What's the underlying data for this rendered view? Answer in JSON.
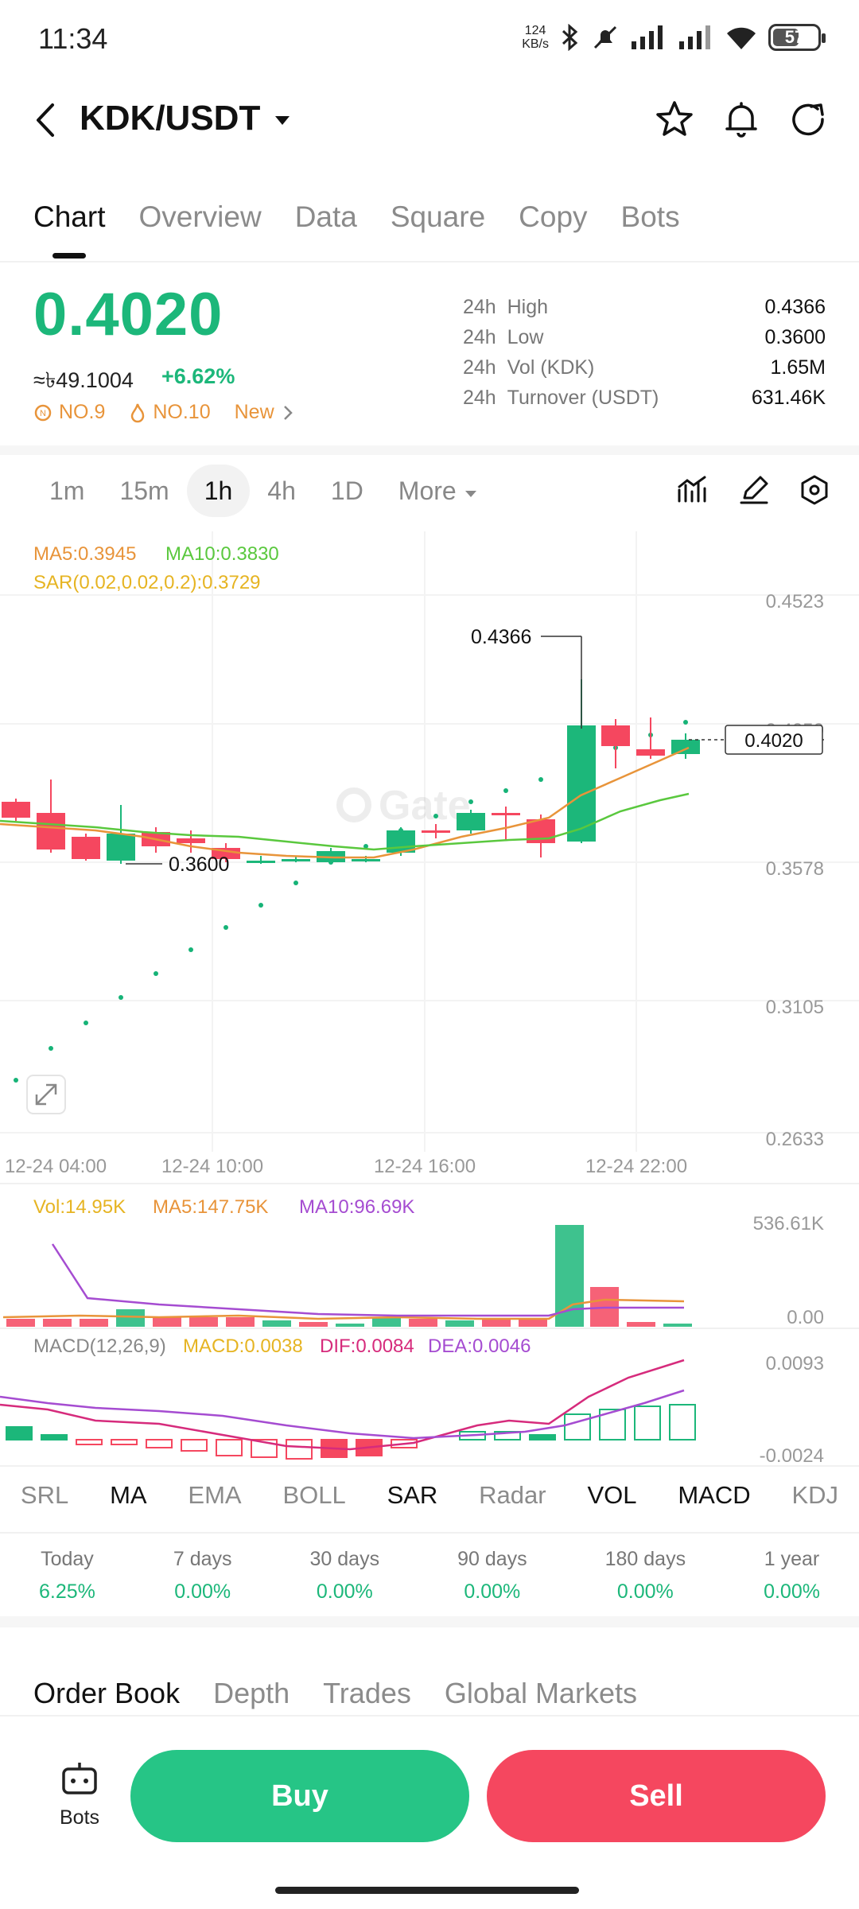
{
  "status": {
    "time": "11:34",
    "speed_value": "124",
    "speed_unit": "KB/s",
    "battery": "57"
  },
  "header": {
    "pair": "KDK/USDT"
  },
  "tabs": [
    {
      "label": "Chart",
      "active": true
    },
    {
      "label": "Overview"
    },
    {
      "label": "Data"
    },
    {
      "label": "Square"
    },
    {
      "label": "Copy"
    },
    {
      "label": "Bots"
    }
  ],
  "price": {
    "last": "0.4020",
    "fiat": "≈৳49.1004",
    "change": "+6.62%",
    "tags": [
      "NO.9",
      "NO.10",
      "New"
    ]
  },
  "stats": [
    {
      "period": "24h",
      "label": "High",
      "value": "0.4366"
    },
    {
      "period": "24h",
      "label": "Low",
      "value": "0.3600"
    },
    {
      "period": "24h",
      "label": "Vol (KDK)",
      "value": "1.65M"
    },
    {
      "period": "24h",
      "label": "Turnover (USDT)",
      "value": "631.46K"
    }
  ],
  "intervals": [
    "1m",
    "15m",
    "1h",
    "4h",
    "1D",
    "More"
  ],
  "active_interval": "1h",
  "colors": {
    "up": "#1cb77a",
    "down": "#f5475f",
    "ma5": "#e8943a",
    "ma10": "#5ac83e",
    "sar": "#16b377",
    "macd_dea": "#a54cd1",
    "macd_dif": "#d62b7c"
  },
  "main_chart": {
    "legend_ma5": "MA5:0.3945",
    "legend_ma10": "MA10:0.3830",
    "legend_sar": "SAR(0.02,0.02,0.2):0.3729",
    "y_ticks": [
      "0.4523",
      "0.4050",
      "0.3578",
      "0.3105",
      "0.2633"
    ],
    "x_ticks": [
      "12-24 04:00",
      "12-24 10:00",
      "12-24 16:00",
      "12-24 22:00"
    ],
    "high_label": "0.4366",
    "low_label": "0.3600",
    "last_label": "0.4020"
  },
  "volume": {
    "legend_vol": "Vol:14.95K",
    "legend_ma5": "MA5:147.75K",
    "legend_ma10": "MA10:96.69K",
    "y_max": "536.61K",
    "y_min": "0.00"
  },
  "macd": {
    "legend_name": "MACD(12,26,9)",
    "legend_macd": "MACD:0.0038",
    "legend_dif": "DIF:0.0084",
    "legend_dea": "DEA:0.0046",
    "y_max": "0.0093",
    "y_min": "-0.0024"
  },
  "indicator_tabs": [
    {
      "label": "SRL"
    },
    {
      "label": "MA",
      "on": true
    },
    {
      "label": "EMA"
    },
    {
      "label": "BOLL"
    },
    {
      "label": "SAR",
      "on": true
    },
    {
      "label": "Radar"
    },
    {
      "label": "VOL",
      "on": true
    },
    {
      "label": "MACD",
      "on": true
    },
    {
      "label": "KDJ"
    }
  ],
  "performance": [
    {
      "label": "Today",
      "value": "6.25%"
    },
    {
      "label": "7 days",
      "value": "0.00%"
    },
    {
      "label": "30 days",
      "value": "0.00%"
    },
    {
      "label": "90 days",
      "value": "0.00%"
    },
    {
      "label": "180 days",
      "value": "0.00%"
    },
    {
      "label": "1 year",
      "value": "0.00%"
    }
  ],
  "bottom_tabs": [
    "Order Book",
    "Depth",
    "Trades",
    "Global Markets"
  ],
  "actions": {
    "bots_label": "Bots",
    "buy": "Buy",
    "sell": "Sell"
  }
}
